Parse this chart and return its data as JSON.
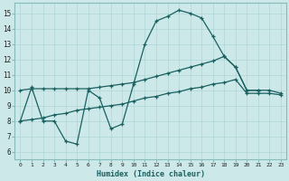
{
  "xlabel": "Humidex (Indice chaleur)",
  "xlim": [
    -0.5,
    23.5
  ],
  "ylim": [
    5.5,
    15.7
  ],
  "yticks": [
    6,
    7,
    8,
    9,
    10,
    11,
    12,
    13,
    14,
    15
  ],
  "xticks": [
    0,
    1,
    2,
    3,
    4,
    5,
    6,
    7,
    8,
    9,
    10,
    11,
    12,
    13,
    14,
    15,
    16,
    17,
    18,
    19,
    20,
    21,
    22,
    23
  ],
  "bg_color": "#cce8e8",
  "grid_color": "#aed4d4",
  "line_color": "#1a6060",
  "series1_x": [
    0,
    1,
    2,
    3,
    4,
    5,
    6,
    7,
    8,
    9,
    10,
    11,
    12,
    13,
    14,
    15,
    16,
    17,
    18,
    19,
    20,
    21
  ],
  "series1_y": [
    8,
    10.2,
    8,
    8,
    6.7,
    6.5,
    10.0,
    9.5,
    7.5,
    7.8,
    10.4,
    13.0,
    14.5,
    14.8,
    15.2,
    15.0,
    14.7,
    13.5,
    12.2,
    11.5,
    10,
    10
  ],
  "series2_x": [
    0,
    1,
    2,
    3,
    4,
    5,
    6,
    7,
    8,
    9,
    10,
    11,
    12,
    13,
    14,
    15,
    16,
    17,
    18,
    19,
    20,
    21,
    22,
    23
  ],
  "series2_y": [
    10,
    10.1,
    10.1,
    10.1,
    10.1,
    10.1,
    10.1,
    10.2,
    10.3,
    10.4,
    10.5,
    10.7,
    10.9,
    11.1,
    11.3,
    11.5,
    11.7,
    11.9,
    12.2,
    11.5,
    10.0,
    10.0,
    10.0,
    9.8
  ],
  "series3_x": [
    0,
    1,
    2,
    3,
    4,
    5,
    6,
    7,
    8,
    9,
    10,
    11,
    12,
    13,
    14,
    15,
    16,
    17,
    18,
    19,
    20,
    21,
    22,
    23
  ],
  "series3_y": [
    8.0,
    8.1,
    8.2,
    8.4,
    8.5,
    8.7,
    8.8,
    8.9,
    9.0,
    9.1,
    9.3,
    9.5,
    9.6,
    9.8,
    9.9,
    10.1,
    10.2,
    10.4,
    10.5,
    10.7,
    9.8,
    9.8,
    9.8,
    9.7
  ]
}
